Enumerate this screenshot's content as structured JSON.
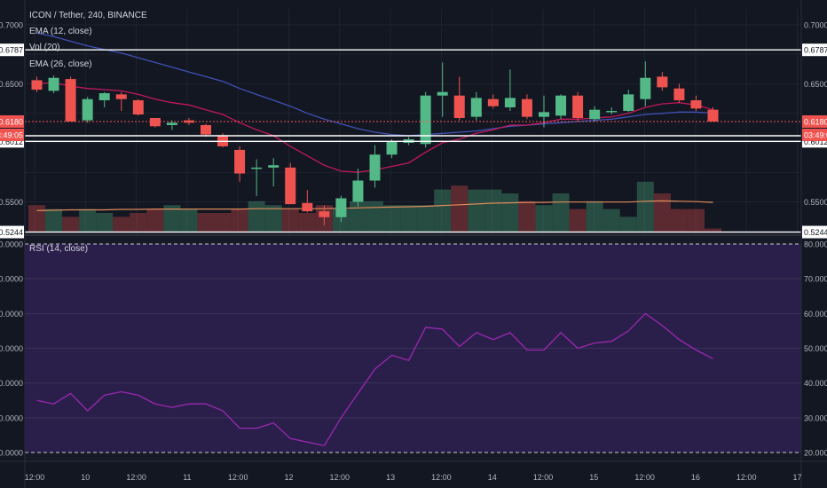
{
  "header": {
    "symbol_title": "ICON / Tether, 240, BINANCE",
    "ema12_label": "EMA (12, close)",
    "vol_label": "Vol (20)",
    "ema26_label": "EMA (26, close)",
    "rsi_label": "RSI (14, close)"
  },
  "price_axis": {
    "ticks": [
      "0.7000",
      "0.6500",
      "0.5500"
    ],
    "tick_values": [
      0.7,
      0.65,
      0.55
    ],
    "line_labels": [
      "0.6787",
      "0.6012",
      "0.5244"
    ],
    "line_values": [
      0.6787,
      0.6012,
      0.5244
    ],
    "last_price": "0.6180",
    "last_value": 0.618,
    "countdown": "03:49:05"
  },
  "rsi_axis": {
    "ticks": [
      "80.0000",
      "70.0000",
      "60.0000",
      "50.0000",
      "40.0000",
      "30.0000",
      "20.0000"
    ],
    "tick_values": [
      80,
      70,
      60,
      50,
      40,
      30,
      20
    ]
  },
  "time_axis": {
    "labels": [
      "12:00",
      "10",
      "12:00",
      "11",
      "12:00",
      "12",
      "12:00",
      "13",
      "12:00",
      "14",
      "12:00",
      "15",
      "12:00",
      "16",
      "12:00",
      "17"
    ]
  },
  "colors": {
    "background": "#131722",
    "up": "#26a69a",
    "up_candle": "#53b987",
    "down": "#ef5350",
    "ema12": "#c2185b",
    "ema26": "#3f51b5",
    "vol_ma": "#e08a5a",
    "rsi_line": "#9c27b0",
    "rsi_band": "#2a1f4a",
    "price_line": "#ef5350",
    "hline": "#ffffff"
  },
  "chart_data": [
    {
      "type": "candlestick",
      "title": "ICON / Tether, 240, BINANCE",
      "ylim": [
        0.517,
        0.72
      ],
      "ohlc": [
        [
          0.653,
          0.656,
          0.643,
          0.645
        ],
        [
          0.644,
          0.657,
          0.642,
          0.655
        ],
        [
          0.654,
          0.656,
          0.618,
          0.618
        ],
        [
          0.619,
          0.639,
          0.617,
          0.637
        ],
        [
          0.636,
          0.643,
          0.63,
          0.642
        ],
        [
          0.641,
          0.643,
          0.627,
          0.637
        ],
        [
          0.636,
          0.637,
          0.623,
          0.624
        ],
        [
          0.621,
          0.621,
          0.613,
          0.614
        ],
        [
          0.615,
          0.619,
          0.611,
          0.617
        ],
        [
          0.619,
          0.621,
          0.615,
          0.617
        ],
        [
          0.615,
          0.616,
          0.605,
          0.607
        ],
        [
          0.606,
          0.608,
          0.596,
          0.597
        ],
        [
          0.594,
          0.597,
          0.567,
          0.574
        ],
        [
          0.578,
          0.586,
          0.555,
          0.579
        ],
        [
          0.579,
          0.587,
          0.563,
          0.581
        ],
        [
          0.579,
          0.583,
          0.548,
          0.548
        ],
        [
          0.549,
          0.56,
          0.541,
          0.542
        ],
        [
          0.542,
          0.547,
          0.53,
          0.537
        ],
        [
          0.537,
          0.555,
          0.533,
          0.553
        ],
        [
          0.55,
          0.578,
          0.546,
          0.568
        ],
        [
          0.568,
          0.598,
          0.562,
          0.59
        ],
        [
          0.59,
          0.603,
          0.587,
          0.601
        ],
        [
          0.6,
          0.605,
          0.598,
          0.603
        ],
        [
          0.599,
          0.643,
          0.596,
          0.64
        ],
        [
          0.64,
          0.668,
          0.622,
          0.643
        ],
        [
          0.64,
          0.656,
          0.619,
          0.621
        ],
        [
          0.622,
          0.643,
          0.619,
          0.638
        ],
        [
          0.637,
          0.641,
          0.629,
          0.631
        ],
        [
          0.63,
          0.662,
          0.627,
          0.638
        ],
        [
          0.637,
          0.641,
          0.62,
          0.622
        ],
        [
          0.622,
          0.64,
          0.613,
          0.626
        ],
        [
          0.623,
          0.641,
          0.62,
          0.64
        ],
        [
          0.64,
          0.643,
          0.618,
          0.621
        ],
        [
          0.62,
          0.631,
          0.618,
          0.628
        ],
        [
          0.626,
          0.63,
          0.624,
          0.627
        ],
        [
          0.627,
          0.645,
          0.626,
          0.641
        ],
        [
          0.637,
          0.669,
          0.631,
          0.655
        ],
        [
          0.656,
          0.66,
          0.644,
          0.647
        ],
        [
          0.646,
          0.65,
          0.634,
          0.636
        ],
        [
          0.636,
          0.64,
          0.627,
          0.629
        ],
        [
          0.628,
          0.63,
          0.618,
          0.618
        ]
      ],
      "ema12": [
        0.65,
        0.651,
        0.648,
        0.646,
        0.645,
        0.644,
        0.641,
        0.637,
        0.634,
        0.632,
        0.628,
        0.624,
        0.617,
        0.611,
        0.606,
        0.597,
        0.589,
        0.581,
        0.576,
        0.575,
        0.577,
        0.58,
        0.583,
        0.592,
        0.6,
        0.603,
        0.608,
        0.611,
        0.615,
        0.615,
        0.617,
        0.62,
        0.62,
        0.621,
        0.622,
        0.625,
        0.63,
        0.633,
        0.634,
        0.632,
        0.628
      ],
      "ema26": [
        0.693,
        0.69,
        0.686,
        0.682,
        0.679,
        0.676,
        0.672,
        0.668,
        0.664,
        0.66,
        0.656,
        0.652,
        0.646,
        0.641,
        0.636,
        0.631,
        0.625,
        0.62,
        0.616,
        0.612,
        0.609,
        0.607,
        0.606,
        0.607,
        0.608,
        0.609,
        0.61,
        0.612,
        0.614,
        0.615,
        0.616,
        0.617,
        0.618,
        0.619,
        0.62,
        0.622,
        0.624,
        0.625,
        0.626,
        0.626,
        0.625
      ]
    },
    {
      "type": "bar",
      "title": "Vol (20)",
      "values": [
        7,
        6,
        4,
        6,
        5,
        4,
        5,
        6,
        7,
        6,
        5,
        5,
        6,
        8,
        7,
        6,
        5,
        7,
        6,
        8,
        8,
        7,
        7,
        7,
        11,
        12,
        11,
        11,
        10,
        8,
        7,
        10,
        6,
        8,
        6,
        4,
        13,
        10,
        6,
        6,
        1
      ],
      "up": [
        false,
        true,
        false,
        true,
        true,
        false,
        false,
        false,
        true,
        true,
        false,
        false,
        false,
        true,
        true,
        false,
        false,
        false,
        true,
        true,
        true,
        true,
        true,
        true,
        true,
        false,
        true,
        true,
        true,
        false,
        true,
        true,
        false,
        true,
        true,
        true,
        true,
        false,
        false,
        false,
        false
      ],
      "ma": [
        5.6,
        5.7,
        5.8,
        5.8,
        5.8,
        5.9,
        5.9,
        6.0,
        6.0,
        6.0,
        6.0,
        6.0,
        6.0,
        6.1,
        6.1,
        6.1,
        6.1,
        6.1,
        6.2,
        6.3,
        6.4,
        6.5,
        6.6,
        6.7,
        6.9,
        7.1,
        7.3,
        7.5,
        7.6,
        7.7,
        7.7,
        7.8,
        7.8,
        7.8,
        7.8,
        7.8,
        8.0,
        8.1,
        8.0,
        7.9,
        7.7
      ]
    },
    {
      "type": "line",
      "title": "RSI (14, close)",
      "ylim": [
        18,
        81
      ],
      "values": [
        35,
        34,
        37,
        32,
        36.5,
        37.5,
        36.5,
        34,
        33,
        34,
        34,
        32,
        27,
        27,
        28.5,
        24,
        23,
        22,
        30,
        37,
        44,
        48,
        46.5,
        56,
        55.5,
        50.5,
        54.5,
        52.5,
        54.5,
        49.5,
        49.5,
        54.5,
        50,
        51.5,
        52,
        55,
        60,
        56.5,
        52.5,
        49.5,
        47
      ],
      "bands": [
        70,
        30
      ],
      "guides": [
        80,
        20
      ]
    }
  ]
}
